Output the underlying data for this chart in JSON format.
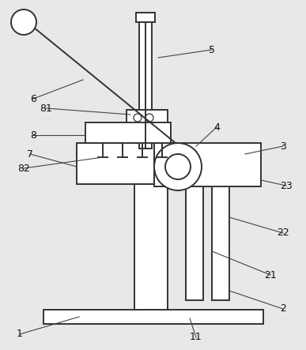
{
  "bg_color": "#e8e8e8",
  "line_color": "#333333",
  "line_width": 1.4,
  "fig_w": 3.87,
  "fig_h": 4.43,
  "dpi": 100
}
